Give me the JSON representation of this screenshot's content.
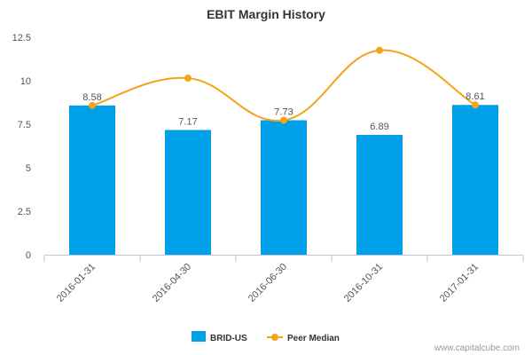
{
  "chart_data": {
    "type": "bar",
    "title": "EBIT Margin History",
    "categories": [
      "2016-01-31",
      "2016-04-30",
      "2016-06-30",
      "2016-10-31",
      "2017-01-31"
    ],
    "series": [
      {
        "name": "BRID-US",
        "type": "bar",
        "color": "#00a0e9",
        "values": [
          8.58,
          7.17,
          7.73,
          6.89,
          8.61
        ]
      },
      {
        "name": "Peer Median",
        "type": "line",
        "color": "#f5a31a",
        "values": [
          8.58,
          10.15,
          7.73,
          11.75,
          8.61
        ]
      }
    ],
    "ylim": [
      0,
      12.5
    ],
    "yticks": [
      "0",
      "2.5",
      "5",
      "7.5",
      "10",
      "12.5"
    ],
    "data_labels": [
      "8.58",
      "7.17",
      "7.73",
      "6.89",
      "8.61"
    ],
    "legend_position": "bottom-center",
    "grid": false
  },
  "credit": "www.capitalcube.com"
}
